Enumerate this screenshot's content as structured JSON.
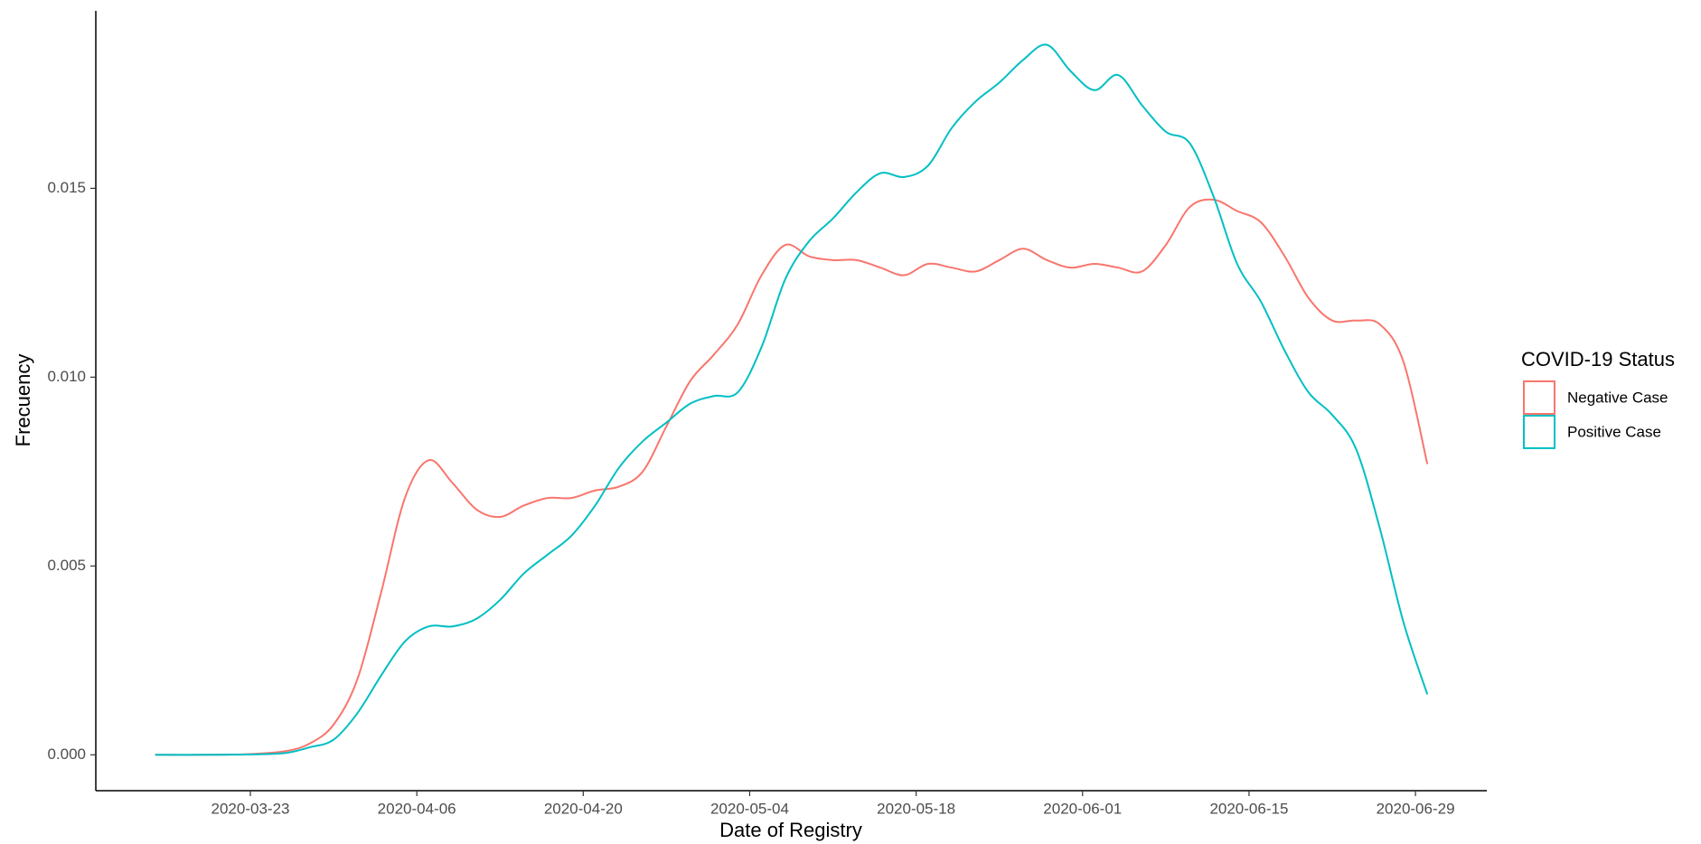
{
  "chart_data": {
    "type": "line",
    "x_label": "Date of Registry",
    "y_label": "Frecuency",
    "legend_title": "COVID-19 Status",
    "legend": "right",
    "grid": false,
    "xlim": [
      "2020-03-10",
      "2020-07-05"
    ],
    "xticks": [
      "2020-03-23",
      "2020-04-06",
      "2020-04-20",
      "2020-05-04",
      "2020-05-18",
      "2020-06-01",
      "2020-06-15",
      "2020-06-29"
    ],
    "ylim": [
      -0.00095,
      0.0197
    ],
    "yticks": [
      {
        "value": 0,
        "label": "0.000"
      },
      0.005,
      {
        "value": 0.01,
        "label": "0.010"
      },
      0.015
    ],
    "x": [
      "2020-03-15",
      "2020-03-19",
      "2020-03-23",
      "2020-03-26",
      "2020-03-28",
      "2020-03-30",
      "2020-04-01",
      "2020-04-03",
      "2020-04-05",
      "2020-04-07",
      "2020-04-09",
      "2020-04-11",
      "2020-04-13",
      "2020-04-15",
      "2020-04-17",
      "2020-04-19",
      "2020-04-21",
      "2020-04-23",
      "2020-04-25",
      "2020-04-27",
      "2020-04-29",
      "2020-05-01",
      "2020-05-03",
      "2020-05-05",
      "2020-05-07",
      "2020-05-09",
      "2020-05-11",
      "2020-05-13",
      "2020-05-15",
      "2020-05-17",
      "2020-05-19",
      "2020-05-21",
      "2020-05-23",
      "2020-05-25",
      "2020-05-27",
      "2020-05-29",
      "2020-05-31",
      "2020-06-02",
      "2020-06-04",
      "2020-06-06",
      "2020-06-08",
      "2020-06-10",
      "2020-06-12",
      "2020-06-14",
      "2020-06-16",
      "2020-06-18",
      "2020-06-20",
      "2020-06-22",
      "2020-06-24",
      "2020-06-26",
      "2020-06-28",
      "2020-06-30"
    ],
    "series": [
      {
        "name": "Negative Case",
        "color": "#f8766d",
        "values": [
          0,
          0,
          2e-05,
          0.0001,
          0.0003,
          0.0008,
          0.002,
          0.0043,
          0.0068,
          0.0078,
          0.0072,
          0.0065,
          0.0063,
          0.0066,
          0.0068,
          0.0068,
          0.007,
          0.0071,
          0.0075,
          0.0087,
          0.0099,
          0.0106,
          0.0114,
          0.0127,
          0.0135,
          0.0132,
          0.0131,
          0.0131,
          0.0129,
          0.0127,
          0.013,
          0.0129,
          0.0128,
          0.0131,
          0.0134,
          0.0131,
          0.0129,
          0.013,
          0.0129,
          0.0128,
          0.0135,
          0.0145,
          0.0147,
          0.0144,
          0.0141,
          0.0132,
          0.0121,
          0.0115,
          0.0115,
          0.0114,
          0.0104,
          0.0077
        ]
      },
      {
        "name": "Positive Case",
        "color": "#00bfc4",
        "values": [
          0,
          0,
          1e-05,
          5e-05,
          0.0002,
          0.0004,
          0.0011,
          0.0021,
          0.003,
          0.0034,
          0.0034,
          0.0036,
          0.0041,
          0.0048,
          0.0053,
          0.0058,
          0.0066,
          0.0076,
          0.0083,
          0.0088,
          0.0093,
          0.0095,
          0.0096,
          0.0108,
          0.0126,
          0.0136,
          0.0142,
          0.0149,
          0.0154,
          0.0153,
          0.0156,
          0.0166,
          0.0173,
          0.0178,
          0.0184,
          0.0188,
          0.0181,
          0.0176,
          0.018,
          0.0172,
          0.0165,
          0.0162,
          0.0148,
          0.013,
          0.012,
          0.0107,
          0.0096,
          0.009,
          0.0081,
          0.006,
          0.0035,
          0.0016
        ]
      }
    ]
  }
}
